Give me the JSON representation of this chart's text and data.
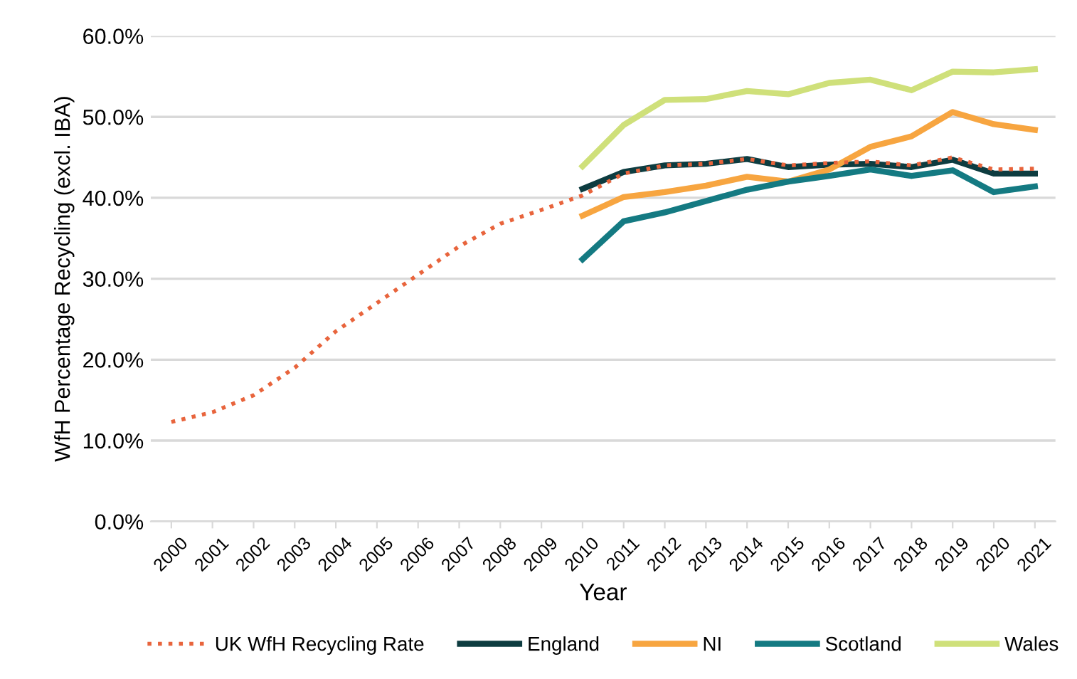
{
  "chart_data": {
    "type": "line",
    "xlabel": "Year",
    "ylabel": "WfH Percentage Recycling (excl. IBA)",
    "categories": [
      "2000",
      "2001",
      "2002",
      "2003",
      "2004",
      "2005",
      "2006",
      "2007",
      "2008",
      "2009",
      "2010",
      "2011",
      "2012",
      "2013",
      "2014",
      "2015",
      "2016",
      "2017",
      "2018",
      "2019",
      "2020",
      "2021"
    ],
    "ylim": [
      0,
      60
    ],
    "yticks": [
      {
        "value": 0,
        "label": "0.0%"
      },
      {
        "value": 10,
        "label": "10.0%"
      },
      {
        "value": 20,
        "label": "20.0%"
      },
      {
        "value": 30,
        "label": "30.0%"
      },
      {
        "value": 40,
        "label": "40.0%"
      },
      {
        "value": 50,
        "label": "50.0%"
      },
      {
        "value": 60,
        "label": "60.0%"
      }
    ],
    "grid": "y",
    "legend": "bottom",
    "marker": "none",
    "series": [
      {
        "name": "UK WfH Recycling Rate",
        "color": "#e8643c",
        "line_style": "dotted",
        "values": [
          12.3,
          13.5,
          15.6,
          19.0,
          23.5,
          27.0,
          30.5,
          34.0,
          36.8,
          38.5,
          40.3,
          43.0,
          44.0,
          44.2,
          44.8,
          44.0,
          44.3,
          44.5,
          44.0,
          45.0,
          43.5,
          43.6
        ]
      },
      {
        "name": "England",
        "color": "#0d3c40",
        "line_style": "solid",
        "values": [
          null,
          null,
          null,
          null,
          null,
          null,
          null,
          null,
          null,
          null,
          41.1,
          43.2,
          44.0,
          44.2,
          44.8,
          43.8,
          44.1,
          44.2,
          43.8,
          44.7,
          43.0,
          43.0
        ]
      },
      {
        "name": "NI",
        "color": "#f7a540",
        "line_style": "solid",
        "values": [
          null,
          null,
          null,
          null,
          null,
          null,
          null,
          null,
          null,
          null,
          37.8,
          40.1,
          40.7,
          41.5,
          42.6,
          42.0,
          43.5,
          46.3,
          47.6,
          50.6,
          49.1,
          48.4
        ]
      },
      {
        "name": "Scotland",
        "color": "#147a82",
        "line_style": "solid",
        "values": [
          null,
          null,
          null,
          null,
          null,
          null,
          null,
          null,
          null,
          null,
          32.4,
          37.1,
          38.2,
          39.6,
          41.0,
          42.0,
          42.7,
          43.5,
          42.7,
          43.4,
          40.7,
          41.4
        ]
      },
      {
        "name": "Wales",
        "color": "#cfe07a",
        "line_style": "solid",
        "values": [
          null,
          null,
          null,
          null,
          null,
          null,
          null,
          null,
          null,
          null,
          43.9,
          49.0,
          52.1,
          52.2,
          53.2,
          52.8,
          54.2,
          54.6,
          53.3,
          55.6,
          55.5,
          55.9
        ]
      }
    ]
  }
}
